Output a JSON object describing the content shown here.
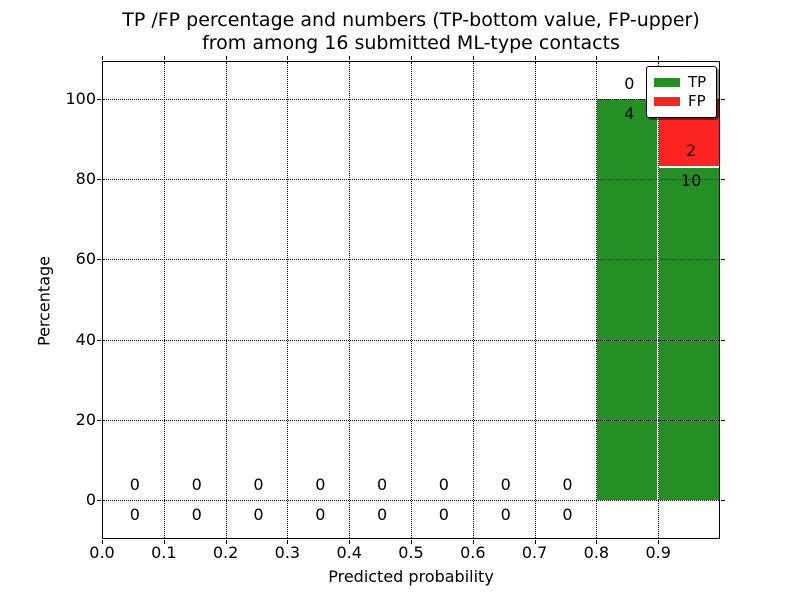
{
  "figure": {
    "title_line1": "TP /FP percentage and numbers (TP-bottom value, FP-upper)",
    "title_line2": "from among 16 submitted ML-type contacts"
  },
  "chart_data": {
    "type": "bar",
    "stacked": true,
    "title": "TP /FP percentage and numbers (TP-bottom value, FP-upper)\nfrom among 16 submitted ML-type contacts",
    "xlabel": "Predicted probability",
    "ylabel": "Percentage",
    "xlim": [
      0.0,
      1.0
    ],
    "ylim_implied": [
      -10,
      110
    ],
    "grid": "dotted",
    "legend_position": "upper right",
    "total_contacts": 16,
    "x_tick_values": [
      0.0,
      0.1,
      0.2,
      0.3,
      0.4,
      0.5,
      0.6,
      0.7,
      0.8,
      0.9
    ],
    "x_tick_labels": [
      "0.0",
      "0.1",
      "0.2",
      "0.3",
      "0.4",
      "0.5",
      "0.6",
      "0.7",
      "0.8",
      "0.9"
    ],
    "y_tick_values": [
      0,
      20,
      40,
      60,
      80,
      100
    ],
    "y_tick_labels": [
      "0",
      "20",
      "40",
      "60",
      "80",
      "100"
    ],
    "bins": [
      [
        0.0,
        0.1
      ],
      [
        0.1,
        0.2
      ],
      [
        0.2,
        0.3
      ],
      [
        0.3,
        0.4
      ],
      [
        0.4,
        0.5
      ],
      [
        0.5,
        0.6
      ],
      [
        0.6,
        0.7
      ],
      [
        0.7,
        0.8
      ],
      [
        0.8,
        0.9
      ],
      [
        0.9,
        1.0
      ]
    ],
    "series": [
      {
        "name": "TP",
        "color": "#249024",
        "counts": [
          0,
          0,
          0,
          0,
          0,
          0,
          0,
          0,
          4,
          10
        ],
        "percentages": [
          0,
          0,
          0,
          0,
          0,
          0,
          0,
          0,
          100,
          83.333
        ]
      },
      {
        "name": "FP",
        "color": "#fc2420",
        "counts": [
          0,
          0,
          0,
          0,
          0,
          0,
          0,
          0,
          0,
          2
        ],
        "percentages": [
          0,
          0,
          0,
          0,
          0,
          0,
          0,
          0,
          0,
          16.667
        ]
      }
    ],
    "legend": [
      {
        "label": "TP",
        "color": "#249024"
      },
      {
        "label": "FP",
        "color": "#fc2420"
      }
    ]
  }
}
